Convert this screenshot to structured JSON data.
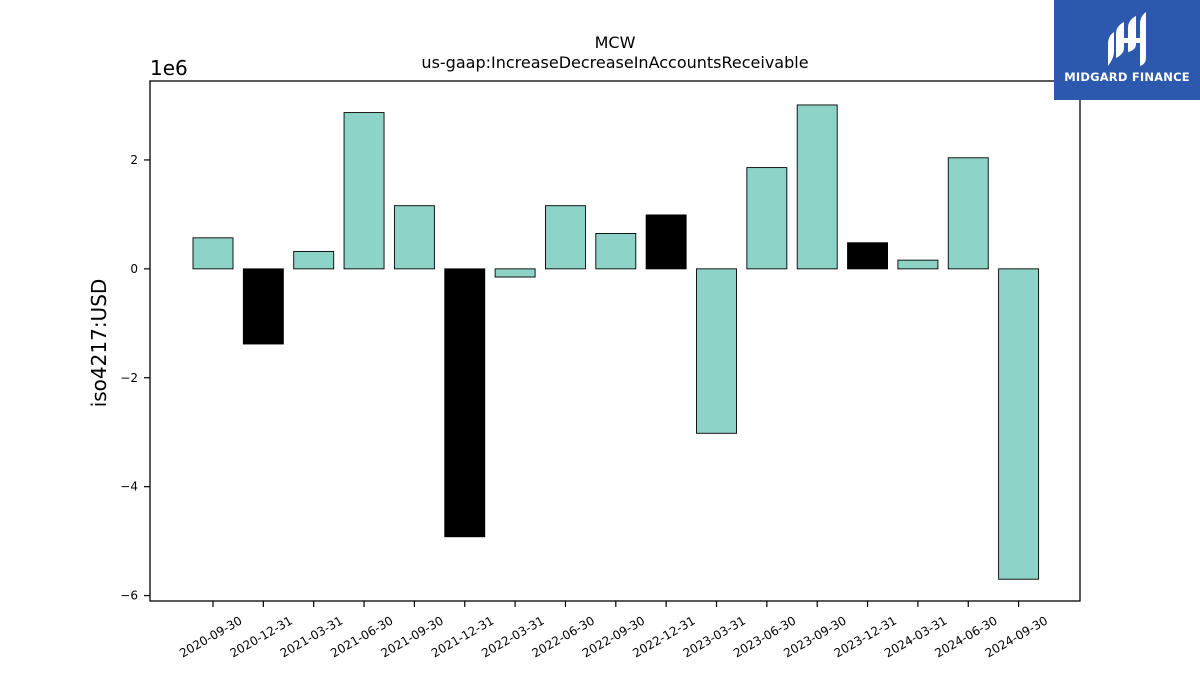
{
  "chart_data": {
    "type": "bar",
    "title": "MCW",
    "subtitle": "us-gaap:IncreaseDecreaseInAccountsReceivable",
    "ylabel": "iso4217:USD",
    "xlabel": "",
    "y_offset_label": "1e6",
    "ylim": [
      -6100000,
      3450000
    ],
    "yticks": [
      2000000,
      0,
      -2000000,
      -4000000,
      -6000000
    ],
    "ytick_labels": [
      "2",
      "0",
      "−2",
      "−4",
      "−6"
    ],
    "grid": false,
    "categories": [
      "2020-09-30",
      "2020-12-31",
      "2021-03-31",
      "2021-06-30",
      "2021-09-30",
      "2021-12-31",
      "2022-03-31",
      "2022-06-30",
      "2022-09-30",
      "2022-12-31",
      "2023-03-31",
      "2023-06-30",
      "2023-09-30",
      "2023-12-31",
      "2024-03-31",
      "2024-06-30",
      "2024-09-30"
    ],
    "values": [
      570000,
      -1380000,
      320000,
      2870000,
      1160000,
      -4920000,
      -150000,
      1160000,
      650000,
      990000,
      -3020000,
      1860000,
      3010000,
      480000,
      160000,
      2040000,
      -5700000
    ],
    "bar_colors": [
      "#8dd3c7",
      "#000000",
      "#8dd3c7",
      "#8dd3c7",
      "#8dd3c7",
      "#000000",
      "#8dd3c7",
      "#8dd3c7",
      "#8dd3c7",
      "#000000",
      "#8dd3c7",
      "#8dd3c7",
      "#8dd3c7",
      "#000000",
      "#8dd3c7",
      "#8dd3c7",
      "#8dd3c7"
    ],
    "colors": {
      "primary": "#8dd3c7",
      "highlight": "#000000"
    }
  },
  "logo": {
    "text": "MIDGARD FINANCE",
    "background": "#2c58ad"
  }
}
